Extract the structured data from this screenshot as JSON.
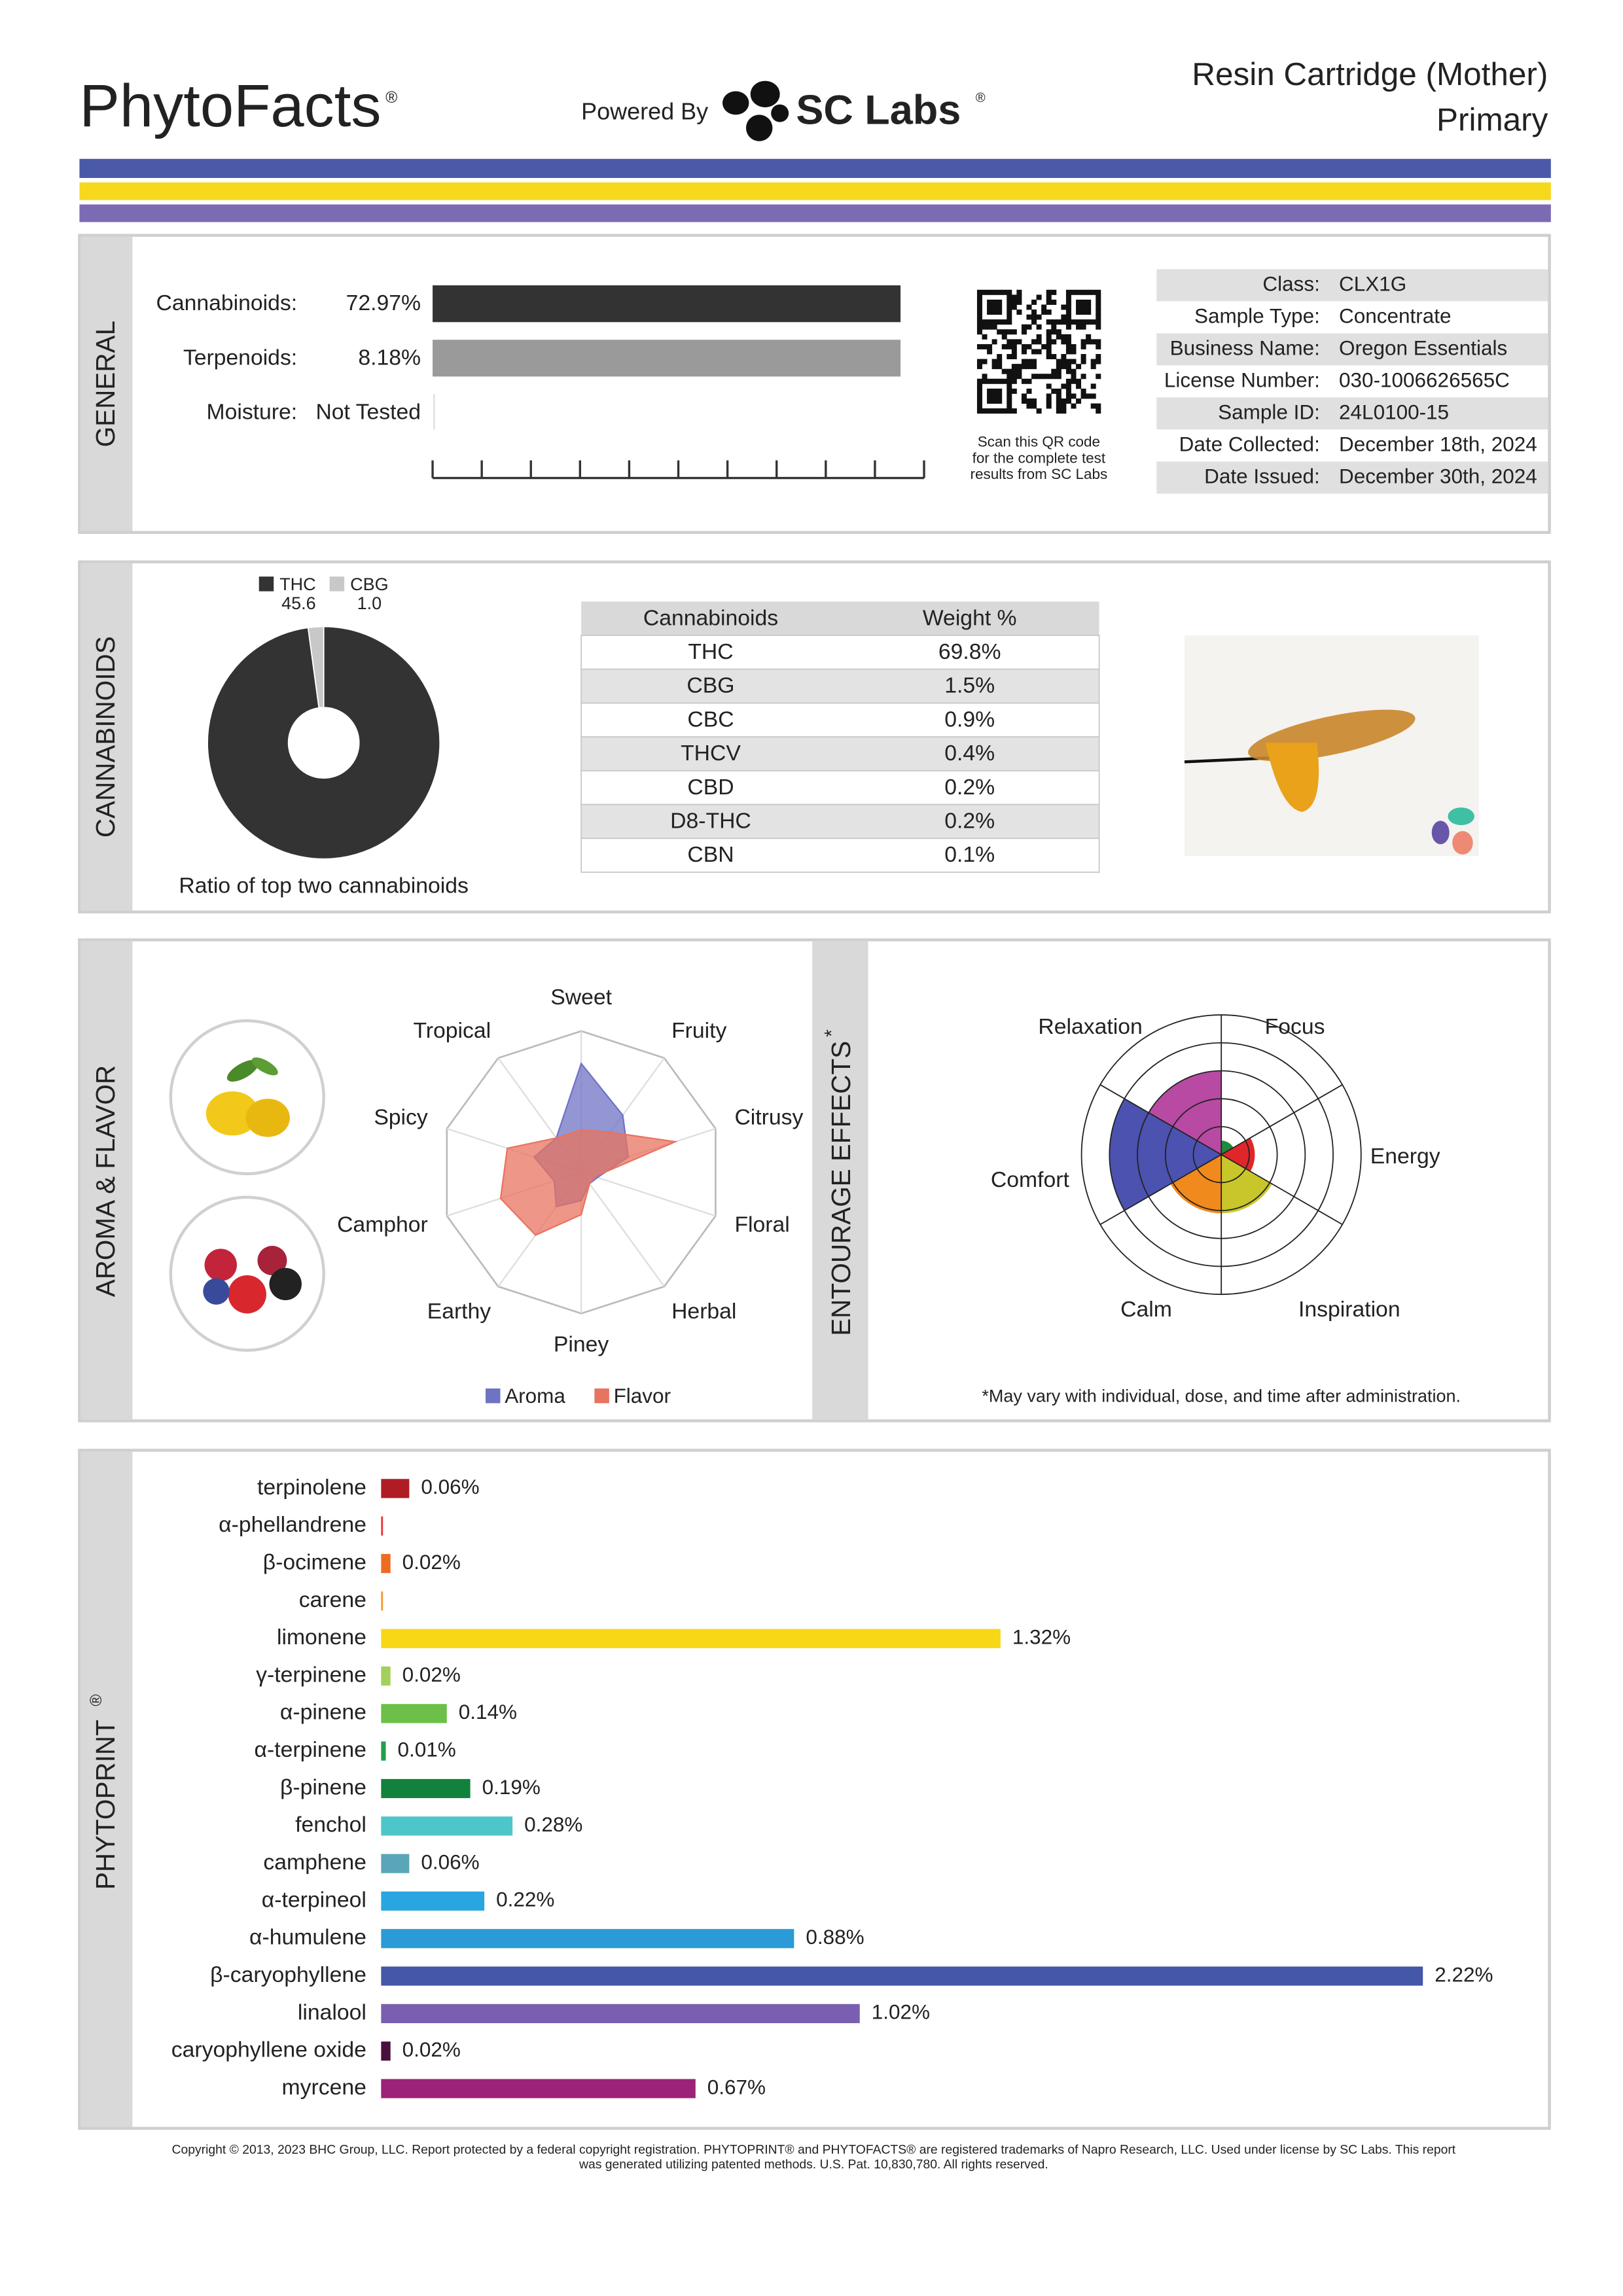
{
  "header": {
    "brand": "PhytoFacts",
    "brand_mark": "®",
    "powered_by": "Powered By",
    "lab": "SC Labs",
    "lab_mark": "®",
    "product": "Resin Cartridge (Mother)",
    "sample": "Primary"
  },
  "general": {
    "section": "GENERAL",
    "rows": [
      {
        "label": "Cannabinoids:",
        "value": "72.97%"
      },
      {
        "label": "Terpenoids:",
        "value": "8.18%"
      },
      {
        "label": "Moisture:",
        "value": "Not Tested"
      }
    ],
    "qr_caption": [
      "Scan this QR code",
      "for the complete test",
      "results from SC Labs"
    ],
    "info": [
      [
        "Class:",
        "CLX1G"
      ],
      [
        "Sample Type:",
        "Concentrate"
      ],
      [
        "Business Name:",
        "Oregon Essentials"
      ],
      [
        "License Number:",
        "030-1006626565C"
      ],
      [
        "Sample ID:",
        "24L0100-15"
      ],
      [
        "Date Collected:",
        "December 18th, 2024"
      ],
      [
        "Date Issued:",
        "December 30th, 2024"
      ]
    ]
  },
  "cannabinoids": {
    "section": "CANNABINOIDS",
    "pie": {
      "type": "pie",
      "categories": [
        "THC",
        "CBG"
      ],
      "values": [
        45.6,
        1.0
      ],
      "value_labels": [
        "45.6",
        "1.0"
      ],
      "colors": [
        "#333333",
        "#c8c8c8"
      ],
      "caption": "Ratio of top two cannabinoids"
    },
    "table": {
      "header": [
        "Cannabinoids",
        "Weight %"
      ],
      "rows": [
        [
          "THC",
          "69.8%"
        ],
        [
          "CBG",
          "1.5%"
        ],
        [
          "CBC",
          "0.9%"
        ],
        [
          "THCV",
          "0.4%"
        ],
        [
          "CBD",
          "0.2%"
        ],
        [
          "D8-THC",
          "0.2%"
        ],
        [
          "CBN",
          "0.1%"
        ]
      ]
    }
  },
  "aroma": {
    "section": "AROMA & FLAVOR",
    "radar": {
      "type": "radar",
      "categories": [
        "Sweet",
        "Fruity",
        "Citrusy",
        "Floral",
        "Herbal",
        "Piney",
        "Earthy",
        "Camphor",
        "Spicy",
        "Tropical"
      ],
      "rlim": [
        0,
        1
      ],
      "series": [
        {
          "name": "Aroma",
          "color": "#6f73c4",
          "values": [
            0.77,
            0.5,
            0.35,
            0.12,
            0.1,
            0.2,
            0.3,
            0.2,
            0.35,
            0.3
          ]
        },
        {
          "name": "Flavor",
          "color": "#e8735f",
          "values": [
            0.3,
            0.35,
            0.7,
            0.1,
            0.1,
            0.3,
            0.55,
            0.6,
            0.55,
            0.3
          ]
        }
      ]
    }
  },
  "entourage": {
    "section": "ENTOURAGE EFFECTS",
    "section_mark": "*",
    "rose": {
      "type": "rose",
      "categories": [
        "Focus",
        "Energy",
        "Inspiration",
        "Calm",
        "Comfort",
        "Relaxation"
      ],
      "values": [
        0.5,
        1.2,
        2.1,
        2.1,
        4,
        3
      ],
      "colors": [
        "#1f8a3b",
        "#e0262b",
        "#c9c62b",
        "#f08a1c",
        "#4b52b0",
        "#b84aa3"
      ],
      "rlim": [
        0,
        5
      ],
      "rticks": [
        1,
        2,
        3,
        4,
        5
      ]
    },
    "footnote": "*May vary with individual, dose, and time after administration."
  },
  "phytoprint": {
    "section": "PHYTOPRINT",
    "section_mark": "®",
    "chart": {
      "type": "bar",
      "orientation": "horizontal",
      "categories": [
        "terpinolene",
        "α-phellandrene",
        "β-ocimene",
        "carene",
        "limonene",
        "γ-terpinene",
        "α-pinene",
        "α-terpinene",
        "β-pinene",
        "fenchol",
        "camphene",
        "α-terpineol",
        "α-humulene",
        "β-caryophyllene",
        "linalool",
        "caryophyllene oxide",
        "myrcene"
      ],
      "values": [
        0.06,
        0.004,
        0.02,
        0.004,
        1.32,
        0.02,
        0.14,
        0.01,
        0.19,
        0.28,
        0.06,
        0.22,
        0.88,
        2.22,
        1.02,
        0.02,
        0.67
      ],
      "value_labels": [
        "0.06%",
        null,
        "0.02%",
        null,
        "1.32%",
        "0.02%",
        "0.14%",
        "0.01%",
        "0.19%",
        "0.28%",
        "0.06%",
        "0.22%",
        "0.88%",
        "2.22%",
        "1.02%",
        "0.02%",
        "0.67%"
      ],
      "colors": [
        "#b01c24",
        "#e8363a",
        "#f06b22",
        "#f39a33",
        "#f7d716",
        "#a3d05a",
        "#6cc04a",
        "#21a04a",
        "#12813c",
        "#4cc6c9",
        "#5ba5b8",
        "#29a6df",
        "#2a9bd6",
        "#4557a8",
        "#7a5fb0",
        "#4a0f3b",
        "#9c2277"
      ]
    }
  },
  "footer": {
    "copyright": [
      "Copyright © 2013, 2023 BHC Group, LLC. Report protected by a federal copyright registration. PHYTOPRINT® and PHYTOFACTS® are registered trademarks of Napro Research, LLC. Used under license by SC Labs. This report",
      "was generated utilizing patented methods. U.S. Pat. 10,830,780. All rights reserved."
    ]
  }
}
